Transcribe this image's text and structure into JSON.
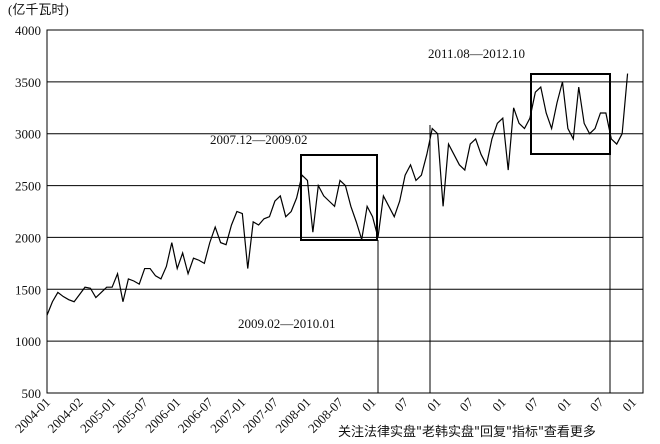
{
  "chart_data": {
    "type": "line",
    "y_label": "(亿千瓦时)",
    "categories": [
      "2004-01",
      null,
      null,
      null,
      null,
      null,
      "2004-02",
      null,
      null,
      null,
      null,
      null,
      "2005-01",
      null,
      null,
      null,
      null,
      null,
      "2005-07",
      null,
      null,
      null,
      null,
      null,
      "2006-01",
      null,
      null,
      null,
      null,
      null,
      "2006-07",
      null,
      null,
      null,
      null,
      null,
      "2007-01",
      null,
      null,
      null,
      null,
      null,
      "2007-07",
      null,
      null,
      null,
      null,
      null,
      "2008-01",
      null,
      null,
      null,
      null,
      null,
      "2008-07",
      null,
      null,
      null,
      null,
      null,
      "01",
      null,
      null,
      null,
      null,
      null,
      "07",
      null,
      null,
      null,
      null,
      null,
      "01",
      null,
      null,
      null,
      null,
      null,
      "07",
      null,
      null,
      null,
      null,
      null,
      "01",
      null,
      null,
      null,
      null,
      null,
      "07",
      null,
      null,
      null,
      null,
      null,
      "01",
      null,
      null,
      null,
      null,
      null,
      "07",
      null,
      null,
      null,
      null,
      null,
      "01"
    ],
    "series": [
      {
        "color": "#000000",
        "values": [
          1250,
          1380,
          1470,
          1430,
          1400,
          1380,
          1450,
          1520,
          1510,
          1420,
          1470,
          1520,
          1520,
          1650,
          1380,
          1600,
          1580,
          1550,
          1700,
          1700,
          1630,
          1600,
          1720,
          1950,
          1700,
          1850,
          1650,
          1800,
          1780,
          1750,
          1950,
          2100,
          1950,
          1930,
          2120,
          2250,
          2230,
          1700,
          2150,
          2120,
          2180,
          2200,
          2350,
          2400,
          2200,
          2250,
          2380,
          2600,
          2550,
          2050,
          2500,
          2400,
          2350,
          2300,
          2550,
          2500,
          2300,
          2150,
          1980,
          2300,
          2200,
          2000,
          2400,
          2300,
          2200,
          2350,
          2600,
          2700,
          2550,
          2600,
          2800,
          3050,
          3000,
          2300,
          2900,
          2800,
          2700,
          2650,
          2900,
          2950,
          2800,
          2700,
          2950,
          3100,
          3150,
          2650,
          3250,
          3100,
          3050,
          3150,
          3400,
          3450,
          3200,
          3050,
          3300,
          3500,
          3050,
          2950,
          3450,
          3100,
          3000,
          3050,
          3200,
          3200,
          2950,
          2900,
          3000,
          3580,
          null
        ]
      }
    ],
    "ylim": [
      500,
      4000
    ],
    "yticks": [
      500,
      1000,
      1500,
      2000,
      2500,
      3000,
      3500,
      4000
    ],
    "grid": true,
    "annotations": [
      "2007.12—2009.02",
      "2011.08—2012.10",
      "2009.02—2010.01"
    ],
    "watermark": "关注法律实盘\"老韩实盘\"回复\"指标\"查看更多"
  }
}
